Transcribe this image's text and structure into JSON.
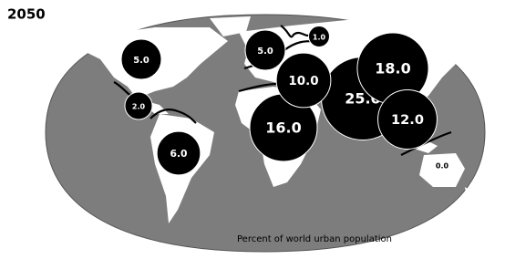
{
  "title": "2050",
  "caption": "Percent of world urban population",
  "regions": {
    "values": [
      5,
      5,
      1,
      18,
      25,
      12,
      10,
      16,
      2,
      6,
      0
    ],
    "value_labels": [
      "5.0",
      "5.0",
      "1.0",
      "18.0",
      "25.0",
      "12.0",
      "10.0",
      "16.0",
      "2.0",
      "6.0",
      "0.0"
    ]
  }
}
